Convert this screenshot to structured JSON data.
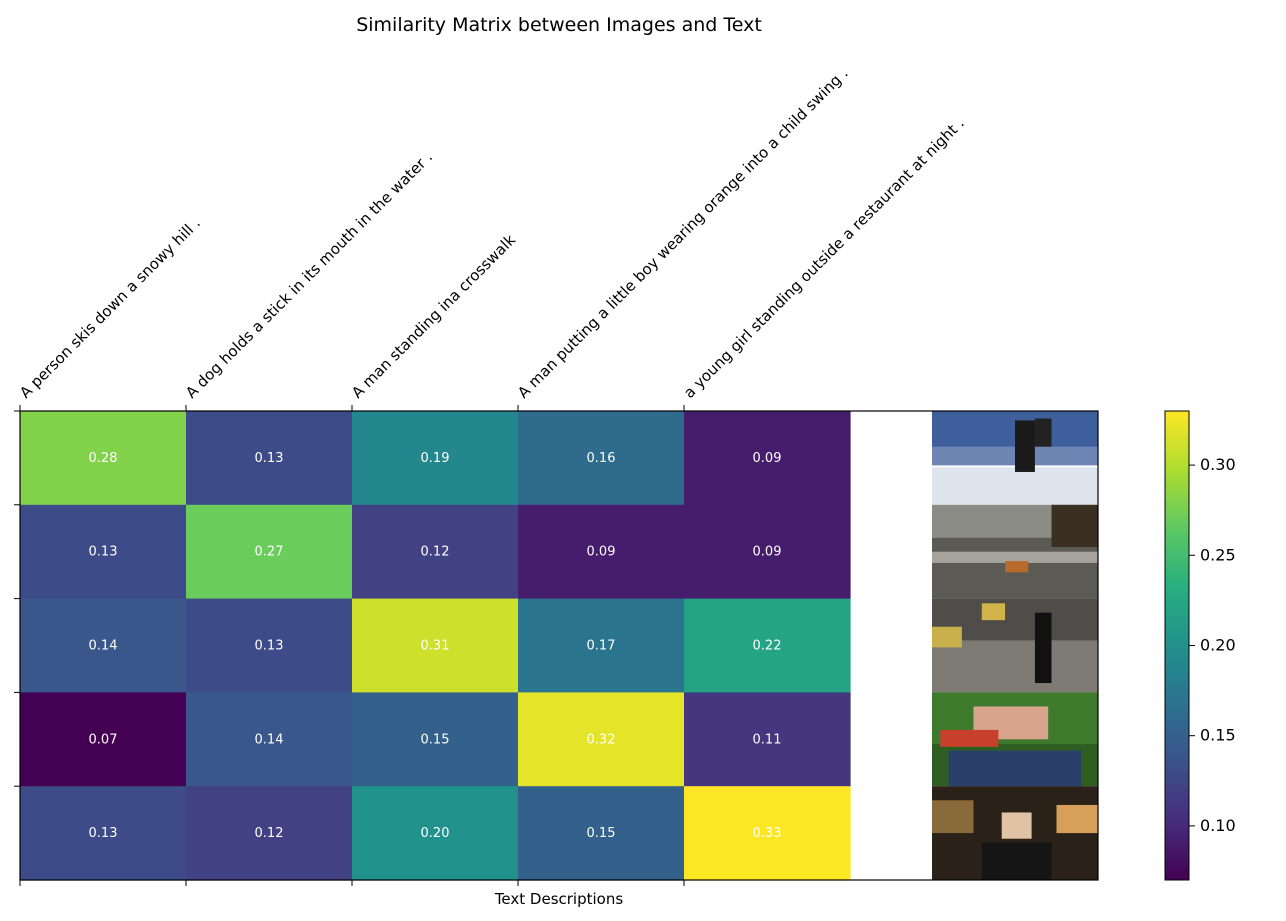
{
  "chart_data": {
    "type": "heatmap",
    "title": "Similarity Matrix between Images and Text",
    "xlabel": "Text Descriptions",
    "ylabel": "",
    "x_categories": [
      "A person skis down a snowy hill .",
      "A dog holds a stick in its mouth in the water .",
      "A man standing ina crosswalk",
      "A man putting a little boy wearing orange into a child swing .",
      "a young girl standing outside a restaurant at night ."
    ],
    "rows": [
      {
        "image": "skier-on-snowy-hill-photo",
        "values": [
          0.28,
          0.13,
          0.19,
          0.16,
          0.09
        ]
      },
      {
        "image": "dog-in-water-photo",
        "values": [
          0.13,
          0.27,
          0.12,
          0.09,
          0.09
        ]
      },
      {
        "image": "man-in-crosswalk-photo",
        "values": [
          0.14,
          0.13,
          0.31,
          0.17,
          0.22
        ]
      },
      {
        "image": "man-with-boy-in-park-photo",
        "values": [
          0.07,
          0.14,
          0.15,
          0.32,
          0.11
        ]
      },
      {
        "image": "girl-outside-restaurant-photo",
        "values": [
          0.13,
          0.12,
          0.2,
          0.15,
          0.33
        ]
      }
    ],
    "value_labels": [
      [
        "0.28",
        "0.13",
        "0.19",
        "0.16",
        "0.09"
      ],
      [
        "0.13",
        "0.27",
        "0.12",
        "0.09",
        "0.09"
      ],
      [
        "0.14",
        "0.13",
        "0.31",
        "0.17",
        "0.22"
      ],
      [
        "0.07",
        "0.14",
        "0.15",
        "0.32",
        "0.11"
      ],
      [
        "0.13",
        "0.12",
        "0.20",
        "0.15",
        "0.33"
      ]
    ],
    "colormap": "viridis",
    "color_range": [
      0.07,
      0.33
    ],
    "colorbar": {
      "ticks": [
        0.1,
        0.15,
        0.2,
        0.25,
        0.3
      ],
      "tick_labels": [
        "0.10",
        "0.15",
        "0.20",
        "0.25",
        "0.30"
      ],
      "placement": "right"
    }
  }
}
